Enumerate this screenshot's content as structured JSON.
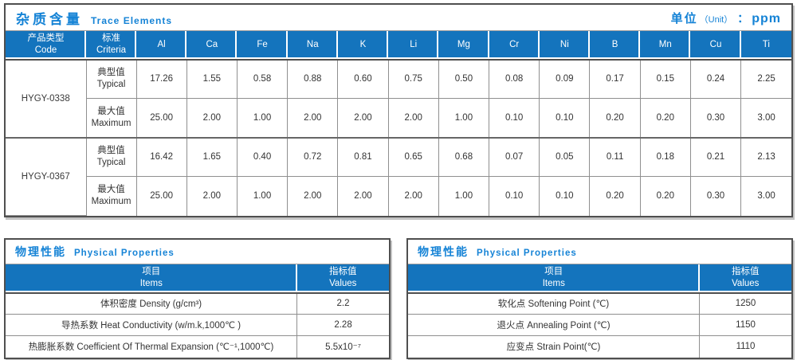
{
  "colors": {
    "header_blue": "#1474bd",
    "title_blue": "#1583d6",
    "border_dark": "#4f4f4f",
    "border_light": "#8f8f8f"
  },
  "trace_table": {
    "title_zh": "杂质含量",
    "title_en": "Trace Elements",
    "unit_zh": "单位",
    "unit_paren": "（Unit）",
    "unit_colon": "：",
    "unit_value": "ppm",
    "col_code_zh": "产品类型",
    "col_code_en": "Code",
    "col_criteria_zh": "标准",
    "col_criteria_en": "Criteria",
    "elements": [
      "Al",
      "Ca",
      "Fe",
      "Na",
      "K",
      "Li",
      "Mg",
      "Cr",
      "Ni",
      "B",
      "Mn",
      "Cu",
      "Ti"
    ],
    "groups": [
      {
        "code": "HYGY-0338",
        "rows": [
          {
            "label_zh": "典型值",
            "label_en": "Typical",
            "values": [
              "17.26",
              "1.55",
              "0.58",
              "0.88",
              "0.60",
              "0.75",
              "0.50",
              "0.08",
              "0.09",
              "0.17",
              "0.15",
              "0.24",
              "2.25"
            ]
          },
          {
            "label_zh": "最大值",
            "label_en": "Maximum",
            "values": [
              "25.00",
              "2.00",
              "1.00",
              "2.00",
              "2.00",
              "2.00",
              "1.00",
              "0.10",
              "0.10",
              "0.20",
              "0.20",
              "0.30",
              "3.00"
            ]
          }
        ]
      },
      {
        "code": "HYGY-0367",
        "rows": [
          {
            "label_zh": "典型值",
            "label_en": "Typical",
            "values": [
              "16.42",
              "1.65",
              "0.40",
              "0.72",
              "0.81",
              "0.65",
              "0.68",
              "0.07",
              "0.05",
              "0.11",
              "0.18",
              "0.21",
              "2.13"
            ]
          },
          {
            "label_zh": "最大值",
            "label_en": "Maximum",
            "values": [
              "25.00",
              "2.00",
              "1.00",
              "2.00",
              "2.00",
              "2.00",
              "1.00",
              "0.10",
              "0.10",
              "0.20",
              "0.20",
              "0.30",
              "3.00"
            ]
          }
        ]
      }
    ]
  },
  "physical_left": {
    "title_zh": "物理性能",
    "title_en": "Physical Properties",
    "col_items_zh": "项目",
    "col_items_en": "Items",
    "col_values_zh": "指标值",
    "col_values_en": "Values",
    "rows": [
      {
        "item": "体积密度 Density (g/cm³)",
        "value": "2.2"
      },
      {
        "item": "导热系数 Heat Conductivity (w/m.k,1000℃ )",
        "value": "2.28"
      },
      {
        "item": "热膨胀系数 Coefficient Of Thermal Expansion (℃⁻¹,1000℃)",
        "value": "5.5x10⁻⁷"
      }
    ]
  },
  "physical_right": {
    "title_zh": "物理性能",
    "title_en": "Physical Properties",
    "col_items_zh": "项目",
    "col_items_en": "Items",
    "col_values_zh": "指标值",
    "col_values_en": "Values",
    "rows": [
      {
        "item": "软化点 Softening Point (℃)",
        "value": "1250"
      },
      {
        "item": "退火点 Annealing Point (℃)",
        "value": "1150"
      },
      {
        "item": "应变点 Strain Point(℃)",
        "value": "1110"
      }
    ]
  }
}
